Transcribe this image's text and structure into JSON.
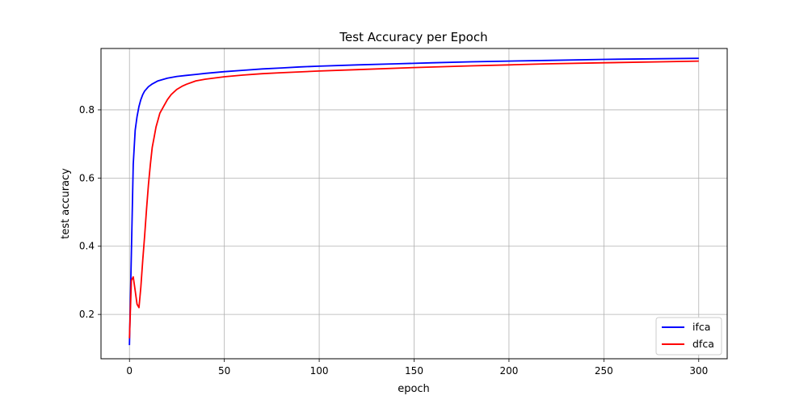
{
  "chart_data": {
    "type": "line",
    "title": "Test Accuracy per Epoch",
    "xlabel": "epoch",
    "ylabel": "test accuracy",
    "xlim": [
      -15,
      315
    ],
    "ylim": [
      0.07,
      0.98
    ],
    "xticks": [
      0,
      50,
      100,
      150,
      200,
      250,
      300
    ],
    "yticks": [
      0.2,
      0.4,
      0.6,
      0.8
    ],
    "ytick_labels": [
      "0.2",
      "0.4",
      "0.6",
      "0.8"
    ],
    "grid": true,
    "legend_position": "bottom-right",
    "series": [
      {
        "name": "ifca",
        "color": "#0000ff",
        "x": [
          0,
          1,
          2,
          3,
          4,
          5,
          6,
          7,
          8,
          10,
          12,
          15,
          20,
          25,
          30,
          35,
          40,
          50,
          60,
          70,
          80,
          90,
          100,
          120,
          140,
          160,
          180,
          200,
          220,
          250,
          280,
          300
        ],
        "y": [
          0.11,
          0.38,
          0.64,
          0.74,
          0.78,
          0.81,
          0.83,
          0.845,
          0.855,
          0.868,
          0.876,
          0.885,
          0.893,
          0.898,
          0.901,
          0.904,
          0.907,
          0.912,
          0.916,
          0.92,
          0.923,
          0.926,
          0.928,
          0.932,
          0.935,
          0.938,
          0.941,
          0.943,
          0.945,
          0.948,
          0.95,
          0.951
        ]
      },
      {
        "name": "dfca",
        "color": "#ff0000",
        "x": [
          0,
          1,
          2,
          3,
          4,
          5,
          6,
          7,
          8,
          9,
          10,
          11,
          12,
          13,
          14,
          15,
          16,
          18,
          20,
          22,
          25,
          28,
          30,
          35,
          40,
          50,
          60,
          70,
          80,
          100,
          120,
          150,
          180,
          200,
          220,
          250,
          280,
          300
        ],
        "y": [
          0.13,
          0.3,
          0.31,
          0.27,
          0.23,
          0.22,
          0.28,
          0.36,
          0.43,
          0.51,
          0.58,
          0.64,
          0.69,
          0.72,
          0.75,
          0.77,
          0.79,
          0.81,
          0.83,
          0.845,
          0.86,
          0.87,
          0.875,
          0.885,
          0.89,
          0.897,
          0.902,
          0.906,
          0.909,
          0.914,
          0.918,
          0.924,
          0.929,
          0.932,
          0.935,
          0.938,
          0.941,
          0.943
        ]
      }
    ]
  }
}
